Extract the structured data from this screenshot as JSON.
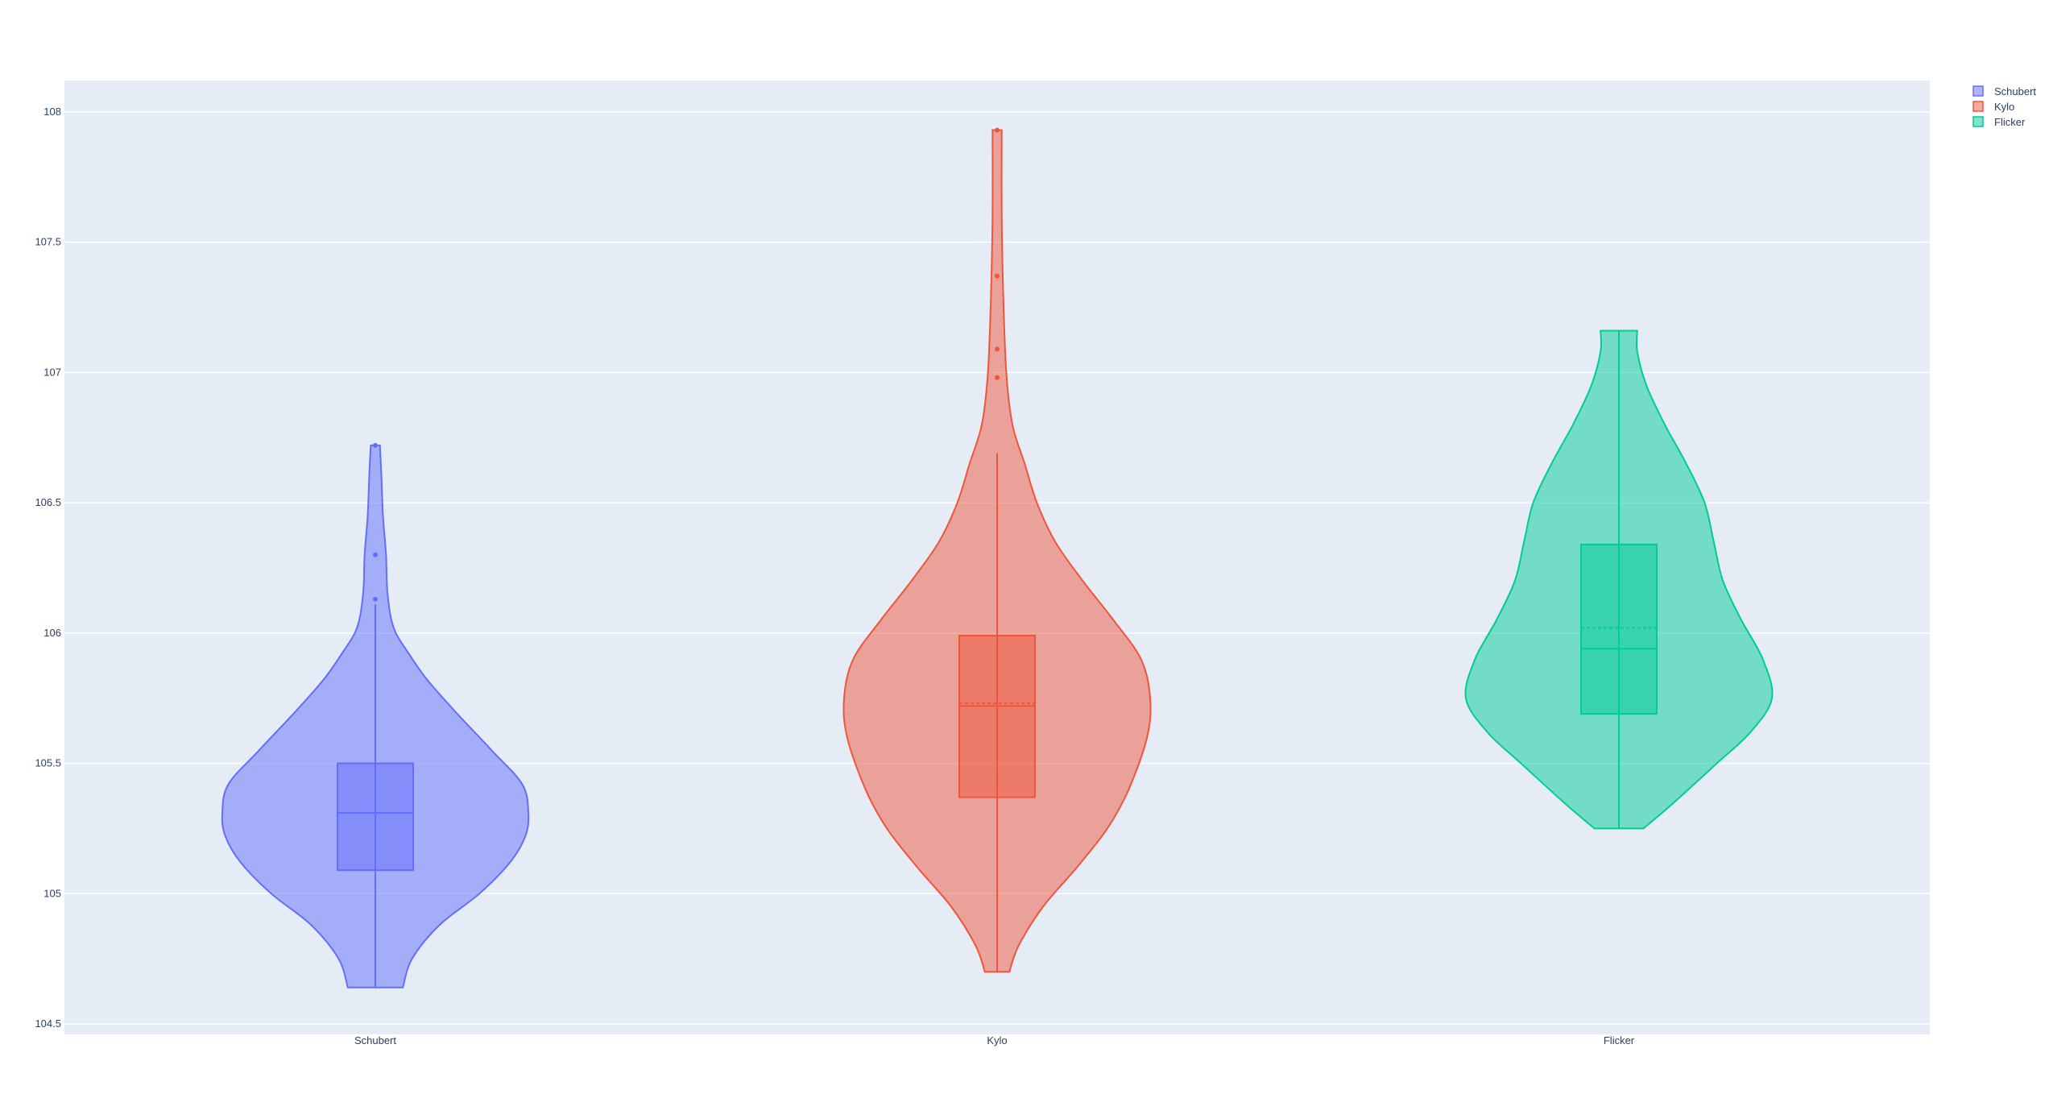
{
  "chart_data": {
    "type": "violin",
    "title": "",
    "xlabel": "",
    "ylabel": "",
    "ylim": [
      104.46,
      108.12
    ],
    "yticks": [
      104.5,
      105,
      105.5,
      106,
      106.5,
      107,
      107.5,
      108
    ],
    "categories": [
      "Schubert",
      "Kylo",
      "Flicker"
    ],
    "grid": true,
    "legend_position": "top-right",
    "series": [
      {
        "name": "Schubert",
        "color": "#636efa",
        "box": {
          "q1": 105.09,
          "median": 105.31,
          "q3": 105.5,
          "whisker_low": 104.64,
          "whisker_high": 106.11
        },
        "mean": null,
        "range": [
          104.64,
          106.72
        ],
        "outliers": [
          106.13,
          106.3,
          106.72
        ],
        "density": [
          [
            104.64,
            0.18
          ],
          [
            104.75,
            0.24
          ],
          [
            104.88,
            0.42
          ],
          [
            105.0,
            0.68
          ],
          [
            105.12,
            0.88
          ],
          [
            105.22,
            0.98
          ],
          [
            105.31,
            1.0
          ],
          [
            105.42,
            0.96
          ],
          [
            105.55,
            0.76
          ],
          [
            105.7,
            0.52
          ],
          [
            105.82,
            0.34
          ],
          [
            105.92,
            0.22
          ],
          [
            106.02,
            0.12
          ],
          [
            106.15,
            0.08
          ],
          [
            106.3,
            0.07
          ],
          [
            106.45,
            0.05
          ],
          [
            106.6,
            0.04
          ],
          [
            106.72,
            0.03
          ]
        ]
      },
      {
        "name": "Kylo",
        "color": "#ef553b",
        "box": {
          "q1": 105.37,
          "median": 105.72,
          "q3": 105.99,
          "whisker_low": 104.7,
          "whisker_high": 106.69
        },
        "mean": 105.73,
        "range": [
          104.7,
          107.93
        ],
        "outliers": [
          106.98,
          107.09,
          107.37,
          107.93
        ],
        "density": [
          [
            104.7,
            0.08
          ],
          [
            104.8,
            0.14
          ],
          [
            104.95,
            0.3
          ],
          [
            105.1,
            0.52
          ],
          [
            105.25,
            0.72
          ],
          [
            105.4,
            0.86
          ],
          [
            105.6,
            0.98
          ],
          [
            105.75,
            1.0
          ],
          [
            105.9,
            0.94
          ],
          [
            106.05,
            0.76
          ],
          [
            106.2,
            0.56
          ],
          [
            106.35,
            0.38
          ],
          [
            106.5,
            0.26
          ],
          [
            106.65,
            0.18
          ],
          [
            106.8,
            0.1
          ],
          [
            107.0,
            0.06
          ],
          [
            107.3,
            0.04
          ],
          [
            107.6,
            0.03
          ],
          [
            107.93,
            0.03
          ]
        ]
      },
      {
        "name": "Flicker",
        "color": "#00cc96",
        "box": {
          "q1": 105.69,
          "median": 105.94,
          "q3": 106.34,
          "whisker_low": 105.25,
          "whisker_high": 107.16
        },
        "mean": 106.02,
        "range": [
          105.25,
          107.16
        ],
        "outliers": [],
        "density": [
          [
            105.25,
            0.16
          ],
          [
            105.35,
            0.36
          ],
          [
            105.5,
            0.64
          ],
          [
            105.62,
            0.86
          ],
          [
            105.75,
            1.0
          ],
          [
            105.9,
            0.94
          ],
          [
            106.05,
            0.8
          ],
          [
            106.2,
            0.68
          ],
          [
            106.35,
            0.62
          ],
          [
            106.5,
            0.56
          ],
          [
            106.65,
            0.44
          ],
          [
            106.8,
            0.3
          ],
          [
            106.95,
            0.18
          ],
          [
            107.08,
            0.12
          ],
          [
            107.16,
            0.12
          ]
        ]
      }
    ]
  }
}
